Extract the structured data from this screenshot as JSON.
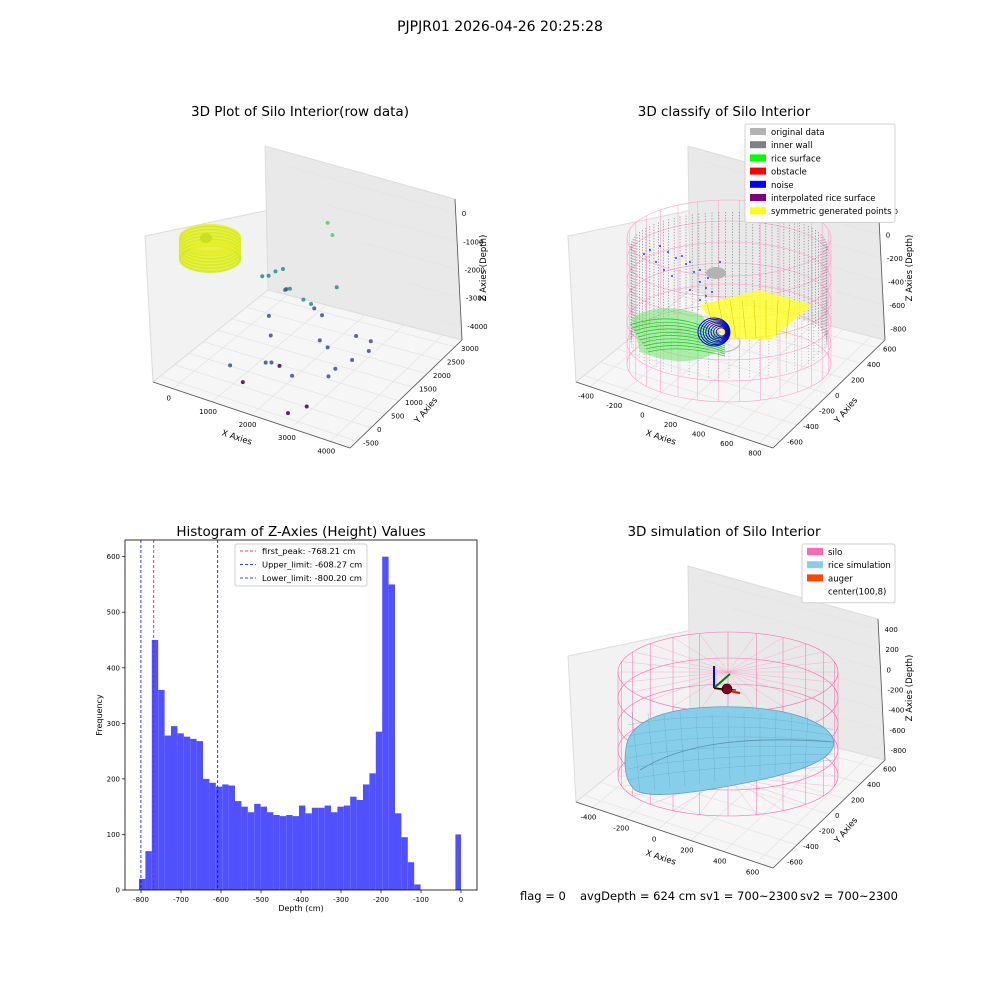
{
  "figure": {
    "suptitle": "PJPJR01 2026-04-26 20:25:28",
    "status": {
      "flag": "flag = 0",
      "avg_depth": "avgDepth = 624 cm",
      "sv1": "sv1 = 700~2300",
      "sv2": "sv2 = 700~2300"
    }
  },
  "chart_data": [
    {
      "id": "raw",
      "type": "scatter",
      "projection": "3d",
      "title": "3D Plot of Silo Interior(row data)",
      "xlabel": "X Axies",
      "ylabel": "Y Axies",
      "zlabel": "Z Axies (Depth)",
      "x_ticks": [
        "0",
        "1000",
        "2000",
        "3000",
        "4000"
      ],
      "y_ticks": [
        "-500",
        "0",
        "500",
        "1000",
        "1500",
        "2000",
        "2500",
        "3000"
      ],
      "z_ticks": [
        "-4000",
        "-3000",
        "-2000",
        "-1000",
        "0"
      ],
      "xlim": [
        -500,
        4500
      ],
      "ylim": [
        -600,
        3200
      ],
      "zlim": [
        -4600,
        200
      ],
      "colormap": "viridis",
      "cluster_color": "#d4e826",
      "points": [
        [
          1500,
          2600,
          -1200
        ],
        [
          1700,
          2500,
          -1450
        ],
        [
          1200,
          1500,
          -1900
        ],
        [
          900,
          1200,
          -2000
        ],
        [
          2300,
          1000,
          -2200
        ],
        [
          2500,
          1600,
          -2100
        ],
        [
          1300,
          1600,
          -2600
        ],
        [
          1100,
          1700,
          -2800
        ],
        [
          900,
          2000,
          -3100
        ],
        [
          1300,
          900,
          -2900
        ],
        [
          1800,
          1400,
          -2600
        ],
        [
          2000,
          1500,
          -2900
        ],
        [
          2200,
          1500,
          -3050
        ],
        [
          2600,
          900,
          -3200
        ],
        [
          2800,
          900,
          -3350
        ],
        [
          3300,
          1200,
          -3050
        ],
        [
          3600,
          1300,
          -3200
        ],
        [
          3700,
          1100,
          -3300
        ],
        [
          3500,
          800,
          -3400
        ],
        [
          3300,
          500,
          -3500
        ],
        [
          3200,
          400,
          -3700
        ],
        [
          2500,
          100,
          -3700
        ],
        [
          1600,
          400,
          -3900
        ],
        [
          1000,
          0,
          -3900
        ],
        [
          1800,
          600,
          -4100
        ],
        [
          1400,
          -100,
          -4200
        ],
        [
          3100,
          -200,
          -4200
        ],
        [
          2700,
          -300,
          -4500
        ],
        [
          600,
          1800,
          -2600
        ],
        [
          700,
          1900,
          -2500
        ],
        [
          1500,
          700,
          -3300
        ],
        [
          1900,
          200,
          -3600
        ]
      ]
    },
    {
      "id": "classify",
      "type": "scatter",
      "projection": "3d",
      "title": "3D classify of Silo Interior",
      "xlabel": "X Axies",
      "ylabel": "Y Axies",
      "zlabel": "Z Axies (Depth)",
      "x_ticks": [
        "-400",
        "-200",
        "0",
        "200",
        "400",
        "600",
        "800"
      ],
      "y_ticks": [
        "-600",
        "-400",
        "-200",
        "0",
        "200",
        "400",
        "600"
      ],
      "z_ticks": [
        "-800",
        "-600",
        "-400",
        "-200",
        "0",
        "200"
      ],
      "legend_position": "top-right",
      "legend": [
        {
          "label": "original data",
          "color": "#b3b3b3"
        },
        {
          "label": "inner wall",
          "color": "#808080"
        },
        {
          "label": "rice surface",
          "color": "#00ff00"
        },
        {
          "label": "obstacle",
          "color": "#ff0000"
        },
        {
          "label": "noise",
          "color": "#0000ff"
        },
        {
          "label": "interpolated rice surface",
          "color": "#800080"
        },
        {
          "label": "symmetric generated points",
          "color": "#ffff00"
        }
      ]
    },
    {
      "id": "histogram",
      "type": "bar",
      "title": "Histogram of Z-Axies (Height) Values",
      "xlabel": "Depth (cm)",
      "ylabel": "Frequency",
      "xlim": [
        -840,
        40
      ],
      "ylim": [
        0,
        630
      ],
      "x_ticks": [
        -800,
        -700,
        -600,
        -500,
        -400,
        -300,
        -200,
        -100,
        0
      ],
      "y_ticks": [
        0,
        100,
        200,
        300,
        400,
        500,
        600
      ],
      "bar_color": "#5050ff",
      "bin_start": -805,
      "bin_width": 16,
      "values": [
        20,
        70,
        450,
        360,
        278,
        295,
        282,
        276,
        272,
        268,
        200,
        193,
        186,
        190,
        188,
        160,
        150,
        140,
        155,
        150,
        140,
        135,
        133,
        135,
        133,
        152,
        138,
        148,
        148,
        152,
        140,
        150,
        152,
        168,
        162,
        190,
        210,
        285,
        600,
        550,
        138,
        95,
        50,
        10
      ],
      "extra_bars": [
        {
          "x": -14,
          "width": 14,
          "value": 100
        }
      ],
      "lines": [
        {
          "label": "first_peak: -768.21 cm",
          "value": -768.21,
          "color": "#ff0000"
        },
        {
          "label": "Upper_limit: -608.27 cm",
          "value": -608.27,
          "color": "#0000ff"
        },
        {
          "label": "Lower_limit: -800.20 cm",
          "value": -800.2,
          "color": "#0000ff"
        }
      ]
    },
    {
      "id": "simulation",
      "type": "area",
      "projection": "3d",
      "title": "3D simulation of Silo Interior",
      "xlabel": "X Axies",
      "ylabel": "Y Axies",
      "zlabel": "Z Axies (Depth)",
      "x_ticks": [
        "-400",
        "-200",
        "0",
        "200",
        "400",
        "600"
      ],
      "y_ticks": [
        "-600",
        "-400",
        "-200",
        "0",
        "200",
        "400",
        "600"
      ],
      "z_ticks": [
        "-800",
        "-600",
        "-400",
        "-200",
        "0",
        "200",
        "400"
      ],
      "legend_position": "top-right",
      "legend": [
        {
          "label": "silo",
          "color": "#ff69b4"
        },
        {
          "label": "rice simulation",
          "color": "#87ceeb"
        },
        {
          "label": "auger",
          "color": "#ff4500"
        },
        {
          "label": "center(100,8)",
          "color": "#ffffff"
        }
      ]
    }
  ]
}
